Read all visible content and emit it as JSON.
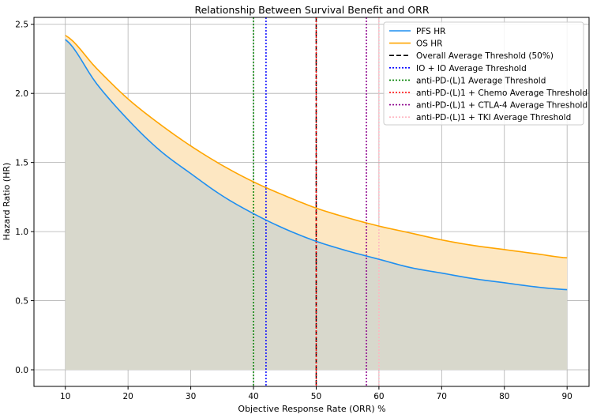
{
  "chart_data": {
    "type": "line",
    "title": "Relationship Between Survival Benefit and ORR",
    "xlabel": "Objective Response Rate (ORR) %",
    "ylabel": "Hazard Ratio (HR)",
    "xlim": [
      5,
      93.5
    ],
    "ylim": [
      -0.12,
      2.55
    ],
    "xticks": [
      10,
      20,
      30,
      40,
      50,
      60,
      70,
      80,
      90
    ],
    "yticks": [
      0.0,
      0.5,
      1.0,
      1.5,
      2.0,
      2.5
    ],
    "ytick_labels": [
      "0.0",
      "0.5",
      "1.0",
      "1.5",
      "2.0",
      "2.5"
    ],
    "grid": true,
    "legend_position": "top-right",
    "x": [
      10,
      15,
      20,
      25,
      30,
      35,
      40,
      45,
      50,
      55,
      60,
      65,
      70,
      75,
      80,
      85,
      90
    ],
    "series": [
      {
        "name": "PFS HR",
        "color": "#1f8ff0",
        "style": "solid",
        "values": [
          2.39,
          2.07,
          1.81,
          1.59,
          1.42,
          1.26,
          1.13,
          1.02,
          0.93,
          0.86,
          0.8,
          0.74,
          0.7,
          0.66,
          0.63,
          0.6,
          0.58
        ]
      },
      {
        "name": "OS HR",
        "color": "#ffa500",
        "style": "solid",
        "values": [
          2.42,
          2.18,
          1.96,
          1.78,
          1.62,
          1.48,
          1.36,
          1.26,
          1.17,
          1.1,
          1.04,
          0.99,
          0.94,
          0.9,
          0.87,
          0.84,
          0.81
        ]
      }
    ],
    "fills": [
      {
        "between": [
          "PFS HR",
          "0"
        ],
        "color": "#d8d8cc"
      },
      {
        "between": [
          "PFS HR",
          "OS HR"
        ],
        "color": "#fde7c2"
      }
    ],
    "thresholds": [
      {
        "name": "Overall Average Threshold (50%)",
        "x": 50,
        "color": "#000000",
        "style": "dashed"
      },
      {
        "name": "IO + IO Average Threshold",
        "x": 42,
        "color": "#0000ff",
        "style": "dotted"
      },
      {
        "name": "anti-PD-(L)1 Average Threshold",
        "x": 40,
        "color": "#008000",
        "style": "dotted"
      },
      {
        "name": "anti-PD-(L)1 + Chemo Average Threshold",
        "x": 50,
        "color": "#ff0000",
        "style": "dotted"
      },
      {
        "name": "anti-PD-(L)1 + CTLA-4 Average Threshold",
        "x": 58,
        "color": "#8b008b",
        "style": "dotted"
      },
      {
        "name": "anti-PD-(L)1 + TKI Average Threshold",
        "x": 60,
        "color": "#ffb6c1",
        "style": "dotted"
      }
    ]
  }
}
